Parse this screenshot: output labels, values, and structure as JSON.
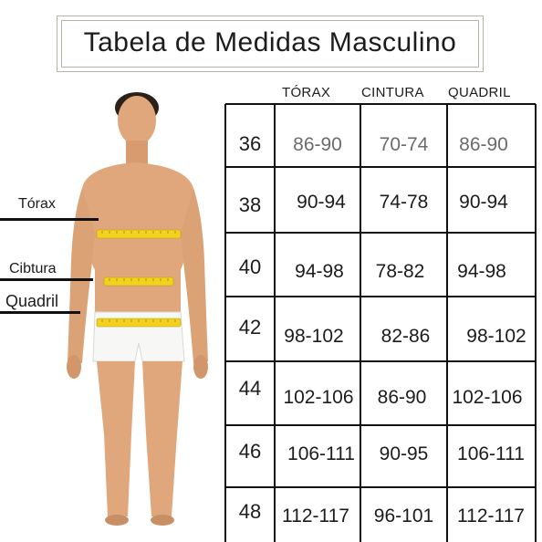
{
  "title": "Tabela de Medidas Masculino",
  "columns": {
    "chest": "TÓRAX",
    "waist": "CINTURA",
    "hip": "QUADRIL"
  },
  "side_labels": {
    "chest": "Tórax",
    "waist": "Cibtura",
    "hip": "Quadril"
  },
  "rows": [
    {
      "size": "36",
      "chest": "86-90",
      "waist": "70-74",
      "hip": "86-90"
    },
    {
      "size": "38",
      "chest": "90-94",
      "waist": "74-78",
      "hip": "90-94"
    },
    {
      "size": "40",
      "chest": "94-98",
      "waist": "78-82",
      "hip": "94-98"
    },
    {
      "size": "42",
      "chest": "98-102",
      "waist": "82-86",
      "hip": "98-102"
    },
    {
      "size": "44",
      "chest": "102-106",
      "waist": "86-90",
      "hip": "102-106"
    },
    {
      "size": "46",
      "chest": "106-111",
      "waist": "90-95",
      "hip": "106-111"
    },
    {
      "size": "48",
      "chest": "112-117",
      "waist": "96-101",
      "hip": "112-117"
    }
  ],
  "colors": {
    "skin": "#e0a77c",
    "skin_shadow": "#c98f64",
    "hair": "#2b2118",
    "tape": "#f2d21e",
    "shorts": "#f7f7f5",
    "lines": "#111111"
  }
}
